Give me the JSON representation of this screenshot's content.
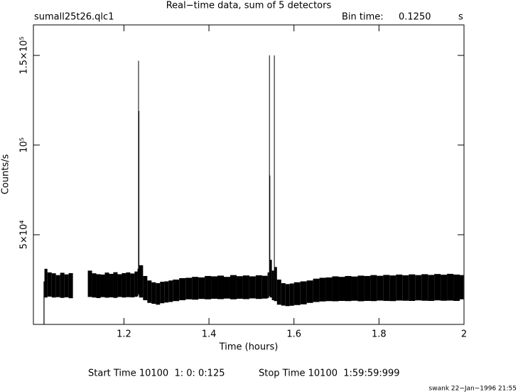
{
  "chart_data": {
    "type": "range",
    "title": "Real−time data, sum of 5 detectors",
    "file_label": "sumall25t26.qlc1",
    "bin_label": "Bin time:",
    "bin_value": "0.1250",
    "bin_unit": "s",
    "xlabel": "Time (hours)",
    "ylabel": "Counts/s",
    "start_time": "Start Time 10100  1: 0: 0:125",
    "stop_time": "Stop Time 10100  1:59:59:999",
    "footer": "swank 22−Jan−1996 21:55",
    "color": "#000000",
    "xlim": [
      0.987,
      2
    ],
    "ylim": [
      0,
      167000
    ],
    "xticks": [
      1.2,
      1.4,
      1.6,
      1.8,
      2
    ],
    "yticks": [
      {
        "value": 50000,
        "label": "5×10⁴"
      },
      {
        "value": 100000,
        "label": "10⁵"
      },
      {
        "value": 150000,
        "label": "1.5×10⁵"
      }
    ],
    "x": [
      1.011,
      1.013,
      1.02,
      1.03,
      1.04,
      1.05,
      1.06,
      1.07,
      1.08,
      1.115,
      1.125,
      1.135,
      1.145,
      1.155,
      1.165,
      1.175,
      1.185,
      1.195,
      1.205,
      1.215,
      1.225,
      1.232,
      1.2335,
      1.2345,
      1.2355,
      1.245,
      1.255,
      1.265,
      1.275,
      1.285,
      1.295,
      1.305,
      1.315,
      1.33,
      1.345,
      1.36,
      1.375,
      1.39,
      1.405,
      1.42,
      1.435,
      1.45,
      1.465,
      1.48,
      1.495,
      1.51,
      1.525,
      1.538,
      1.5415,
      1.5425,
      1.5435,
      1.548,
      1.553,
      1.554,
      1.56,
      1.57,
      1.58,
      1.59,
      1.6,
      1.615,
      1.63,
      1.645,
      1.66,
      1.675,
      1.69,
      1.705,
      1.72,
      1.735,
      1.75,
      1.765,
      1.78,
      1.795,
      1.81,
      1.825,
      1.84,
      1.855,
      1.87,
      1.885,
      1.9,
      1.915,
      1.93,
      1.945,
      1.96,
      1.975,
      1.99,
      1.999
    ],
    "low": [
      0,
      15000,
      15500,
      15000,
      15200,
      14800,
      15100,
      14600,
      null,
      15300,
      15000,
      14700,
      15200,
      14900,
      15100,
      14800,
      15300,
      15000,
      15200,
      15100,
      15400,
      15800,
      17000,
      16500,
      15000,
      13500,
      12000,
      11500,
      11000,
      11800,
      12200,
      12500,
      13000,
      13500,
      14000,
      13800,
      14200,
      14000,
      14300,
      14100,
      14400,
      14000,
      14300,
      14100,
      14500,
      14200,
      14400,
      14800,
      16000,
      15500,
      15000,
      13500,
      13000,
      13000,
      11000,
      10500,
      10200,
      10400,
      10800,
      11200,
      12000,
      12500,
      12800,
      13000,
      12900,
      13100,
      13000,
      13200,
      12900,
      13100,
      13000,
      13300,
      13100,
      13000,
      13300,
      13200,
      13100,
      13400,
      13200,
      13100,
      13400,
      13200,
      13300,
      13100,
      14000,
      null
    ],
    "high": [
      24000,
      31000,
      29000,
      28500,
      27500,
      28800,
      27900,
      28600,
      null,
      30000,
      28500,
      28000,
      27800,
      28900,
      28200,
      29100,
      28000,
      28600,
      29000,
      28400,
      29500,
      31000,
      147000,
      119000,
      33000,
      27000,
      24500,
      23500,
      23000,
      23800,
      24000,
      24500,
      25000,
      25800,
      26000,
      26500,
      26200,
      27000,
      26800,
      27200,
      26500,
      27500,
      26900,
      27300,
      26800,
      27400,
      27100,
      29000,
      150000,
      83000,
      36000,
      30000,
      150000,
      32000,
      25000,
      23000,
      22500,
      22800,
      23500,
      24000,
      24500,
      25500,
      26000,
      26200,
      26800,
      26500,
      27000,
      26700,
      27200,
      27000,
      27500,
      27100,
      27600,
      27300,
      27800,
      27400,
      27900,
      27500,
      28000,
      27600,
      28100,
      27700,
      28200,
      27800,
      27500,
      null
    ]
  }
}
